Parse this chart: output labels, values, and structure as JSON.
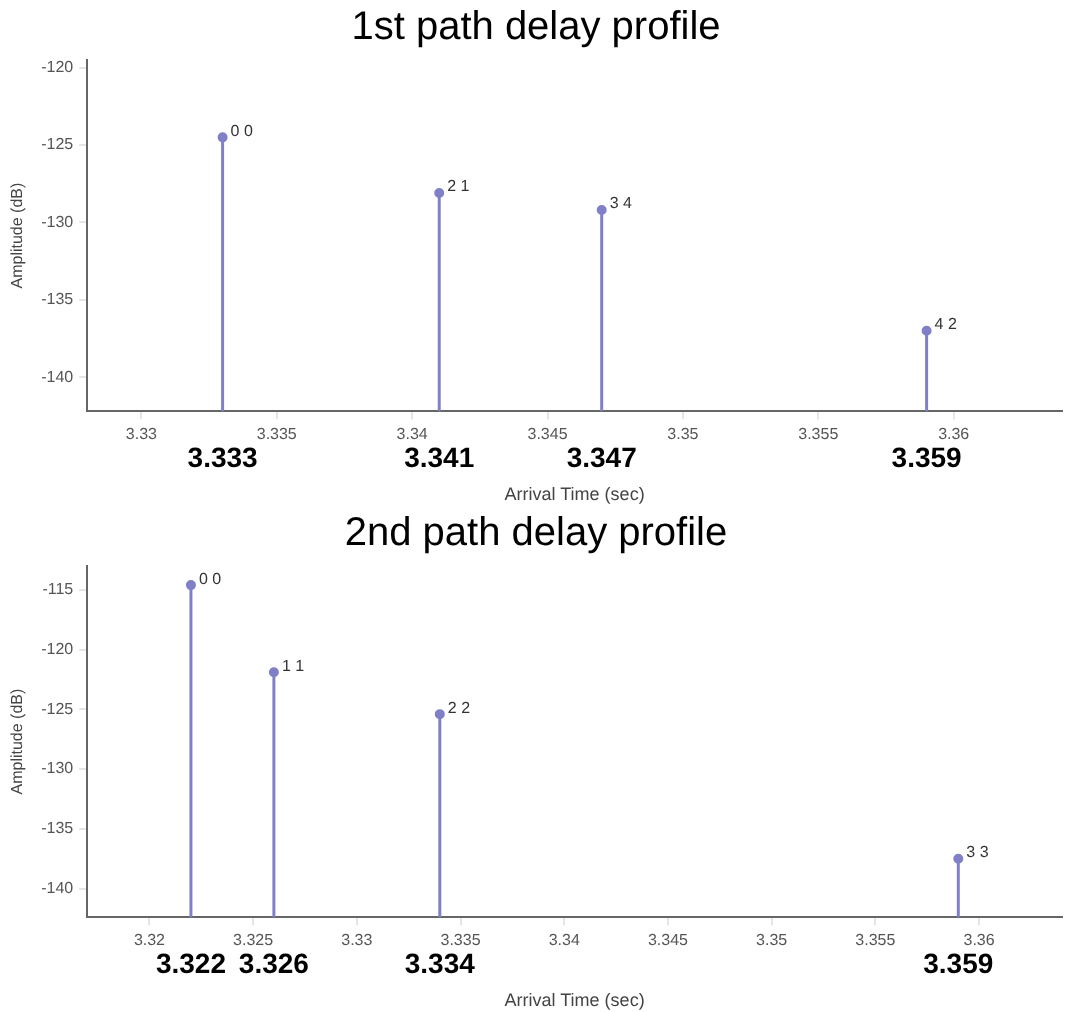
{
  "chart_data": [
    {
      "type": "lollipop",
      "title": "1st path delay profile",
      "xlabel": "Arrival Time (sec)",
      "ylabel": "Amplitude (dB)",
      "grid": false,
      "legend": false,
      "x": [
        3.333,
        3.341,
        3.347,
        3.359
      ],
      "values": [
        -124.5,
        -128.1,
        -129.2,
        -137.0
      ],
      "color": "#8080c8",
      "xlim": [
        3.328,
        3.364
      ],
      "xticks": [
        3.33,
        3.335,
        3.34,
        3.345,
        3.35,
        3.355,
        3.36
      ],
      "ylim": [
        -142.2,
        -119.5
      ],
      "yticks": [
        -140,
        -135,
        -130,
        -125,
        -120
      ],
      "annotations": [
        {
          "text": "0 0",
          "x": 3.333,
          "y": -124.5
        },
        {
          "text": "2 1",
          "x": 3.341,
          "y": -128.1
        },
        {
          "text": "3 4",
          "x": 3.347,
          "y": -129.2
        },
        {
          "text": "4 2",
          "x": 3.359,
          "y": -137.0
        },
        {
          "text": "3.333",
          "x": 3.333
        },
        {
          "text": "3.341",
          "x": 3.341
        },
        {
          "text": "3.347",
          "x": 3.347
        },
        {
          "text": "3.359",
          "x": 3.359
        }
      ]
    },
    {
      "type": "lollipop",
      "title": "2nd path delay profile",
      "xlabel": "Arrival Time (sec)",
      "ylabel": "Amplitude (dB)",
      "grid": false,
      "legend": false,
      "x": [
        3.322,
        3.326,
        3.334,
        3.359
      ],
      "values": [
        -114.6,
        -121.9,
        -125.4,
        -137.5
      ],
      "color": "#8080c8",
      "xlim": [
        3.317,
        3.364
      ],
      "xticks": [
        3.32,
        3.325,
        3.33,
        3.335,
        3.34,
        3.345,
        3.35,
        3.355,
        3.36
      ],
      "ylim": [
        -142.4,
        -113
      ],
      "yticks": [
        -140,
        -135,
        -130,
        -125,
        -120,
        -115
      ],
      "annotations": [
        {
          "text": "0 0",
          "x": 3.322,
          "y": -114.6
        },
        {
          "text": "1 1",
          "x": 3.326,
          "y": -121.9
        },
        {
          "text": "2 2",
          "x": 3.334,
          "y": -125.4
        },
        {
          "text": "3 3",
          "x": 3.359,
          "y": -137.5
        },
        {
          "text": "3.322",
          "x": 3.322
        },
        {
          "text": "3.326",
          "x": 3.326
        },
        {
          "text": "3.334",
          "x": 3.334
        },
        {
          "text": "3.359",
          "x": 3.359
        }
      ]
    }
  ]
}
